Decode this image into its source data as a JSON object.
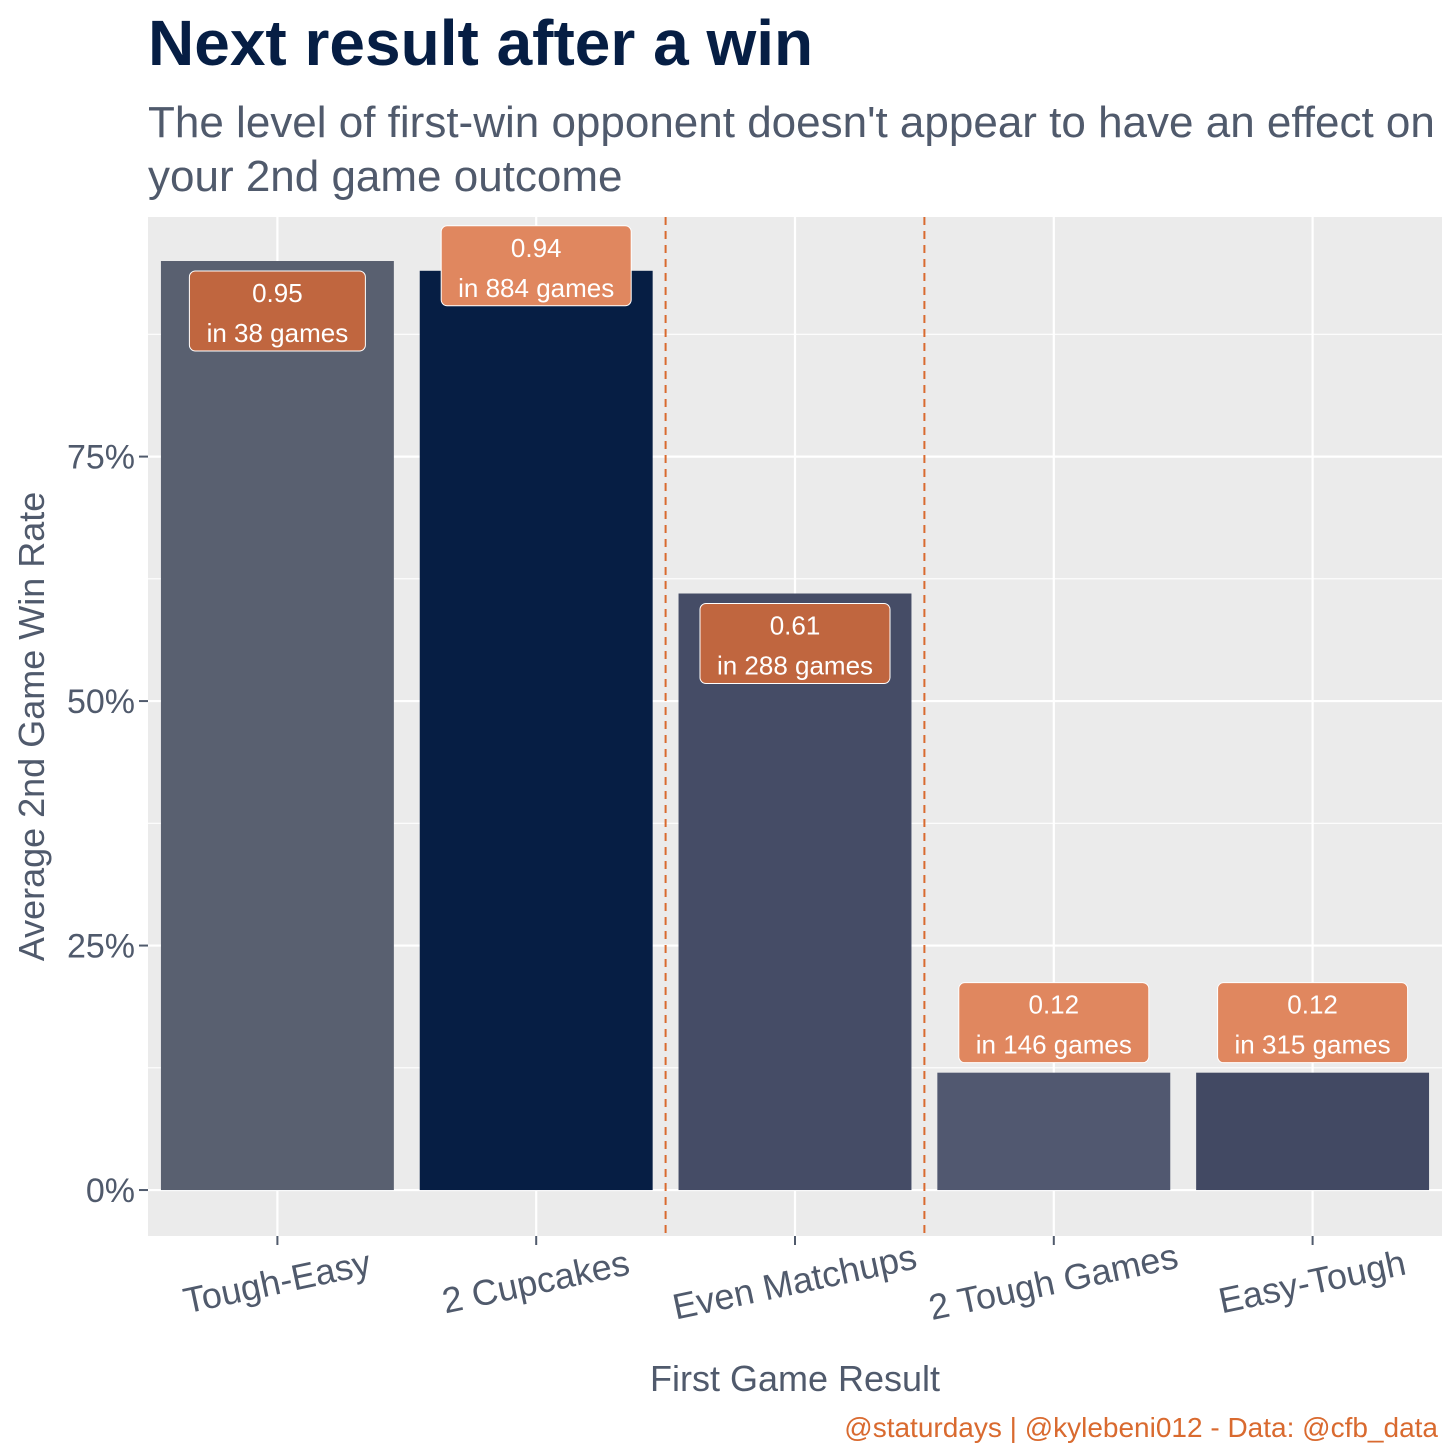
{
  "header": {
    "title": "Next result after a win",
    "subtitle": "The level of first-win opponent doesn't appear to have an effect on your 2nd game outcome"
  },
  "caption": "@staturdays | @kylebeni012 - Data: @cfb_data",
  "colors": {
    "panel_background": "#ebebeb",
    "gridline": "#ffffff",
    "vline": "#d96a2f",
    "label_fill_dark": "#c0663f",
    "label_fill_light": "#e0875f",
    "title": "#061e44",
    "text": "#505a6c"
  },
  "chart_data": {
    "type": "bar",
    "categories": [
      "Tough-Easy",
      "2 Cupcakes",
      "Even Matchups",
      "2 Tough Games",
      "Easy-Tough"
    ],
    "values": [
      0.95,
      0.94,
      0.61,
      0.12,
      0.12
    ],
    "games": [
      38,
      884,
      288,
      146,
      315
    ],
    "bar_labels": [
      [
        "0.95",
        "in 38 games"
      ],
      [
        "0.94",
        "in 884 games"
      ],
      [
        "0.61",
        "in 288 games"
      ],
      [
        "0.12",
        "in 146 games"
      ],
      [
        "0.12",
        "in 315 games"
      ]
    ],
    "bar_colors": [
      "#596070",
      "#061e44",
      "#454c66",
      "#515870",
      "#424963"
    ],
    "label_colors": [
      "#c0663f",
      "#e0875f",
      "#c0663f",
      "#e0875f",
      "#e0875f"
    ],
    "xlabel": "First Game Result",
    "ylabel": "Average 2nd Game Win Rate",
    "ylim": [
      -0.047,
      0.995
    ],
    "yticks": [
      0,
      0.25,
      0.5,
      0.75
    ],
    "ytick_labels": [
      "0%",
      "25%",
      "50%",
      "75%"
    ],
    "vlines_between": [
      [
        2,
        3
      ],
      [
        3,
        4
      ]
    ],
    "grid": true
  }
}
